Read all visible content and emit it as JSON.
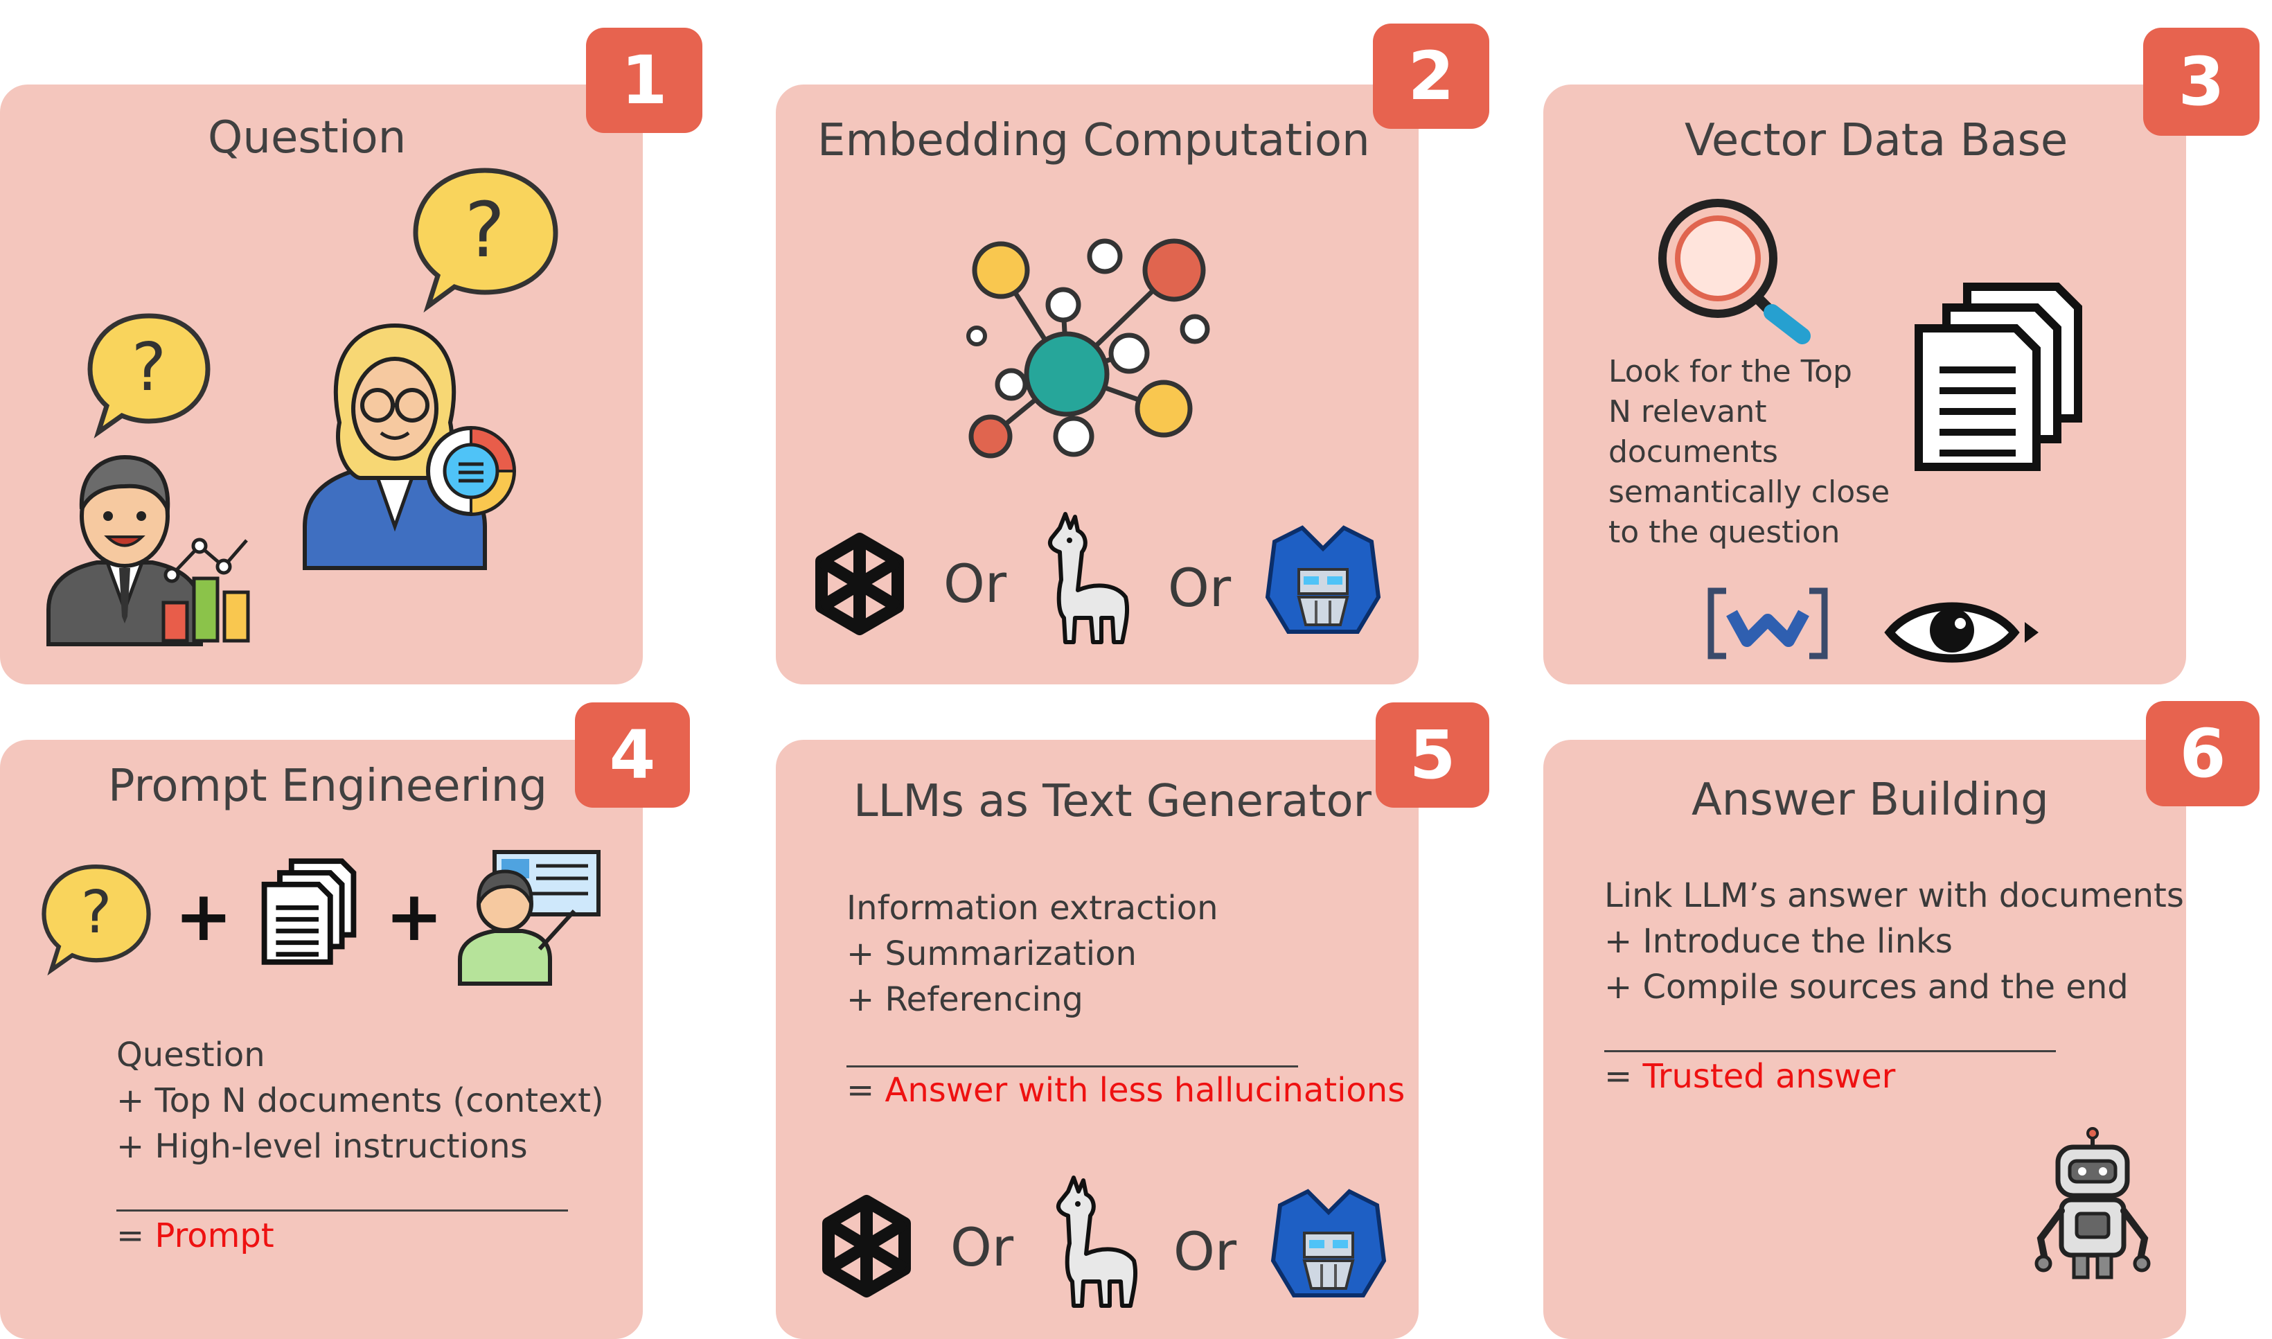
{
  "panels": [
    {
      "number": "1",
      "title": "Question"
    },
    {
      "number": "2",
      "title": "Embedding Computation",
      "or1": "Or",
      "or2": "Or"
    },
    {
      "number": "3",
      "title": "Vector Data Base",
      "text_lines": [
        "Look for the Top",
        "N relevant",
        "documents",
        "semantically close",
        "to the question"
      ]
    },
    {
      "number": "4",
      "title": "Prompt Engineering",
      "lines": [
        "Question",
        "+ Top N documents (context)",
        "+ High-level instructions"
      ],
      "result_prefix": "= ",
      "result": "Prompt"
    },
    {
      "number": "5",
      "title": "LLMs as Text Generator",
      "lines": [
        "Information extraction",
        "+ Summarization",
        "+ Referencing"
      ],
      "result_prefix": "= ",
      "result": "Answer with less hallucinations",
      "or1": "Or",
      "or2": "Or"
    },
    {
      "number": "6",
      "title": "Answer Building",
      "lines": [
        "Link LLM’s answer with documents",
        "+ Introduce the links",
        "+ Compile sources and the end"
      ],
      "result_prefix": "= ",
      "result": "Trusted answer"
    }
  ],
  "plus_sign": "+",
  "icons": [
    "question-bubble-icon",
    "businessman-icon",
    "bar-chart-icon",
    "businesswoman-icon",
    "network-graph-icon",
    "openai-logo-icon",
    "llama-icon",
    "transformer-robot-icon",
    "magnifier-icon",
    "documents-icon",
    "weaviate-logo-icon",
    "eye-logo-icon",
    "teacher-icon",
    "robot-icon"
  ],
  "colors": {
    "panel": "#f4c6bd",
    "badge": "#e7634f",
    "result": "#ee1111",
    "text": "#404040"
  }
}
